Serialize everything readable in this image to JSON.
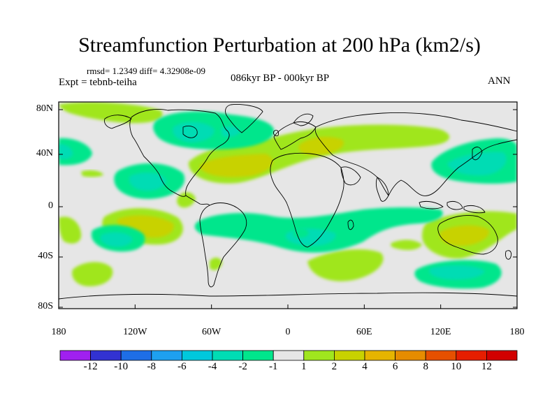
{
  "title": "Streamfunction Perturbation at 200 hPa (km2/s)",
  "stats_line": "rmsd= 1.2349 diff= 4.32908e-09",
  "experiment": "Expt = tebnb-teiha",
  "period": "086kyr BP - 000kyr BP",
  "season": "ANN",
  "lat_ticks": [
    "80N",
    "40N",
    "0",
    "40S",
    "80S"
  ],
  "lon_ticks": [
    "180",
    "120W",
    "60W",
    "0",
    "60E",
    "120E",
    "180"
  ],
  "colorbar": {
    "levels": [
      "-12",
      "-10",
      "-8",
      "-6",
      "-4",
      "-2",
      "-1",
      "1",
      "2",
      "4",
      "6",
      "8",
      "10",
      "12"
    ],
    "colors": [
      "#a020f0",
      "#3232d2",
      "#1e6ee6",
      "#1ea0f0",
      "#00c8dc",
      "#00dcb4",
      "#00e68c",
      "#e6e6e6",
      "#a0e61e",
      "#c8d200",
      "#e6b400",
      "#e68c00",
      "#e65000",
      "#e61e00",
      "#d20000"
    ]
  },
  "palette": {
    "neg1": "#00e68c",
    "neg2": "#00dcb4",
    "pos1": "#a0e61e",
    "pos2": "#c8d200",
    "pos3": "#e6b400",
    "background": "#e6e6e6"
  }
}
